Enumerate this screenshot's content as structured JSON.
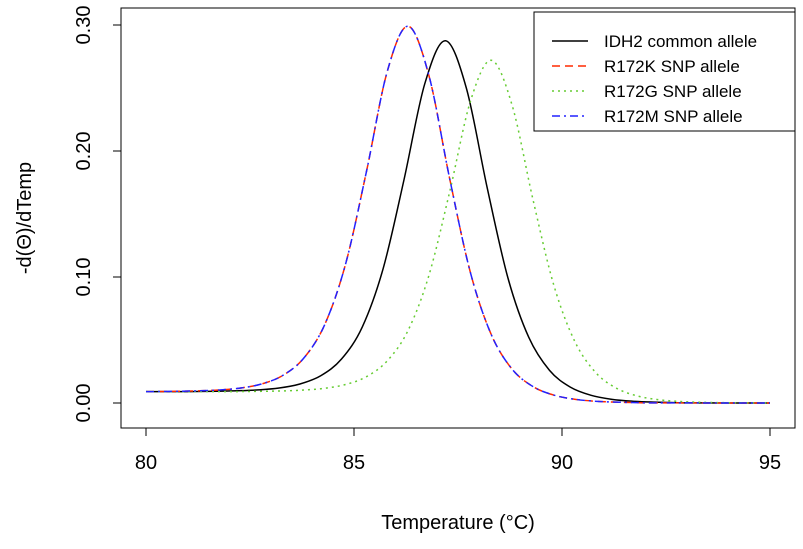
{
  "chart_data": {
    "type": "line",
    "title": "",
    "xlabel": "Temperature (°C)",
    "ylabel": "-d(Θ)/dTemp",
    "xlim": [
      80,
      95
    ],
    "ylim": [
      0,
      0.3
    ],
    "xticks": [
      "80",
      "85",
      "90",
      "95"
    ],
    "yticks": [
      "0.00",
      "0.10",
      "0.20",
      "0.30"
    ],
    "grid": false,
    "legend_position": "top-right",
    "series": [
      {
        "name": "IDH2 common allele",
        "color": "#000000",
        "dash": "solid",
        "x": [
          80.0,
          80.7,
          81.2,
          81.7,
          82.2,
          82.7,
          83.2,
          83.7,
          84.2,
          84.7,
          85.2,
          85.7,
          86.2,
          86.7,
          87.2,
          87.7,
          88.2,
          88.7,
          89.2,
          89.7,
          90.2,
          90.7,
          91.2,
          91.7,
          92.2,
          92.7,
          93.2,
          95.0
        ],
        "y": [
          0.009,
          0.009,
          0.0091,
          0.0093,
          0.0097,
          0.0104,
          0.0119,
          0.0151,
          0.0216,
          0.0349,
          0.0604,
          0.1066,
          0.1769,
          0.2532,
          0.2875,
          0.25,
          0.1711,
          0.0993,
          0.0522,
          0.0259,
          0.0126,
          0.0061,
          0.0029,
          0.0014,
          0.0007,
          0.0003,
          0.0001,
          0
        ]
      },
      {
        "name": "R172K SNP allele",
        "color": "#ff2a00",
        "dash": "dashed",
        "x": [
          80.0,
          80.3,
          80.8,
          81.3,
          81.8,
          82.3,
          82.8,
          83.3,
          83.8,
          84.3,
          84.8,
          85.3,
          85.8,
          86.3,
          86.8,
          87.3,
          87.8,
          88.3,
          88.8,
          89.3,
          89.8,
          90.3,
          90.8,
          91.3,
          91.8,
          92.3,
          95.0
        ],
        "y": [
          0.009,
          0.0091,
          0.0093,
          0.0097,
          0.0104,
          0.012,
          0.0153,
          0.0221,
          0.0359,
          0.0625,
          0.1106,
          0.1838,
          0.2632,
          0.299,
          0.26,
          0.178,
          0.1033,
          0.0543,
          0.0269,
          0.0131,
          0.0063,
          0.003,
          0.0014,
          0.0007,
          0.0003,
          0.0001,
          0
        ]
      },
      {
        "name": "R172G SNP allele",
        "color": "#66cc33",
        "dash": "dotted",
        "x": [
          80.0,
          80.8,
          81.3,
          81.8,
          82.3,
          82.8,
          83.3,
          83.8,
          84.3,
          84.8,
          85.3,
          85.8,
          86.3,
          86.8,
          87.3,
          87.8,
          88.3,
          88.8,
          89.3,
          89.8,
          90.3,
          90.8,
          91.3,
          91.8,
          92.3,
          92.8,
          93.3,
          93.8,
          95.0
        ],
        "y": [
          0.009,
          0.009,
          0.009,
          0.009,
          0.0091,
          0.0093,
          0.0096,
          0.0103,
          0.0117,
          0.0147,
          0.0209,
          0.0335,
          0.0576,
          0.1012,
          0.1676,
          0.2396,
          0.272,
          0.2364,
          0.1618,
          0.0939,
          0.0494,
          0.0245,
          0.0119,
          0.0057,
          0.0027,
          0.0013,
          0.0006,
          0.0003,
          0
        ]
      },
      {
        "name": "R172M SNP allele",
        "color": "#2222ff",
        "dash": "dotdash",
        "x": [
          80.0,
          80.3,
          80.8,
          81.3,
          81.8,
          82.3,
          82.8,
          83.3,
          83.8,
          84.3,
          84.8,
          85.3,
          85.8,
          86.3,
          86.8,
          87.3,
          87.8,
          88.3,
          88.8,
          89.3,
          89.8,
          90.3,
          90.8,
          91.3,
          91.8,
          92.3,
          95.0
        ],
        "y": [
          0.009,
          0.0091,
          0.0093,
          0.0097,
          0.0104,
          0.012,
          0.0153,
          0.0221,
          0.0359,
          0.0625,
          0.1106,
          0.1838,
          0.2632,
          0.299,
          0.26,
          0.178,
          0.1033,
          0.0543,
          0.0269,
          0.0131,
          0.0063,
          0.003,
          0.0014,
          0.0007,
          0.0003,
          0.0001,
          0
        ]
      }
    ]
  }
}
